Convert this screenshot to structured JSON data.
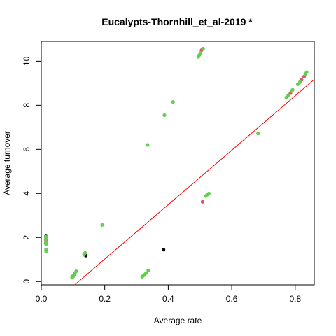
{
  "chart_data": {
    "type": "scatter",
    "title": "Eucalypts-Thornhill_et_al-2019 *",
    "xlabel": "Average rate",
    "ylabel": "Average turnover",
    "xlim": [
      0.0,
      0.86
    ],
    "ylim": [
      -0.15,
      10.9
    ],
    "x_ticks": [
      0.0,
      0.2,
      0.4,
      0.6,
      0.8
    ],
    "x_tick_labels": [
      "0.0",
      "0.2",
      "0.4",
      "0.6",
      "0.8"
    ],
    "y_ticks": [
      0,
      2,
      4,
      6,
      8,
      10
    ],
    "y_tick_labels": [
      "0",
      "2",
      "4",
      "6",
      "8",
      "10"
    ],
    "grid": false,
    "colors": {
      "black": "#000000",
      "red": "#DF536B",
      "green": "#61D04F",
      "fit_line": "#FF0000"
    },
    "series": [
      {
        "color": "black",
        "points": [
          [
            0.015,
            2.08
          ],
          [
            0.015,
            1.92
          ],
          [
            0.015,
            1.75
          ],
          [
            0.14,
            1.18
          ],
          [
            0.385,
            1.45
          ]
        ]
      },
      {
        "color": "red",
        "points": [
          [
            0.015,
            2.0
          ],
          [
            0.015,
            1.85
          ],
          [
            0.1,
            0.25
          ],
          [
            0.325,
            0.3
          ],
          [
            0.508,
            3.62
          ],
          [
            0.505,
            10.5
          ],
          [
            0.785,
            8.55
          ],
          [
            0.82,
            9.15
          ],
          [
            0.828,
            9.3
          ]
        ]
      },
      {
        "color": "green",
        "points": [
          [
            0.015,
            2.05
          ],
          [
            0.015,
            1.95
          ],
          [
            0.015,
            1.8
          ],
          [
            0.015,
            1.7
          ],
          [
            0.015,
            1.45
          ],
          [
            0.015,
            1.38
          ],
          [
            0.097,
            0.18
          ],
          [
            0.1,
            0.22
          ],
          [
            0.103,
            0.3
          ],
          [
            0.106,
            0.38
          ],
          [
            0.11,
            0.47
          ],
          [
            0.135,
            1.22
          ],
          [
            0.138,
            1.3
          ],
          [
            0.192,
            2.57
          ],
          [
            0.318,
            0.22
          ],
          [
            0.322,
            0.28
          ],
          [
            0.33,
            0.38
          ],
          [
            0.337,
            0.5
          ],
          [
            0.335,
            6.2
          ],
          [
            0.388,
            7.55
          ],
          [
            0.415,
            8.15
          ],
          [
            0.495,
            10.2
          ],
          [
            0.498,
            10.28
          ],
          [
            0.502,
            10.38
          ],
          [
            0.51,
            10.57
          ],
          [
            0.518,
            3.88
          ],
          [
            0.523,
            3.95
          ],
          [
            0.528,
            4.0
          ],
          [
            0.683,
            6.72
          ],
          [
            0.772,
            8.35
          ],
          [
            0.778,
            8.45
          ],
          [
            0.788,
            8.65
          ],
          [
            0.792,
            8.7
          ],
          [
            0.808,
            8.95
          ],
          [
            0.815,
            9.05
          ],
          [
            0.832,
            9.42
          ],
          [
            0.836,
            9.5
          ]
        ]
      }
    ],
    "fit_line": {
      "slope": 12.35,
      "intercept": -1.45
    }
  }
}
